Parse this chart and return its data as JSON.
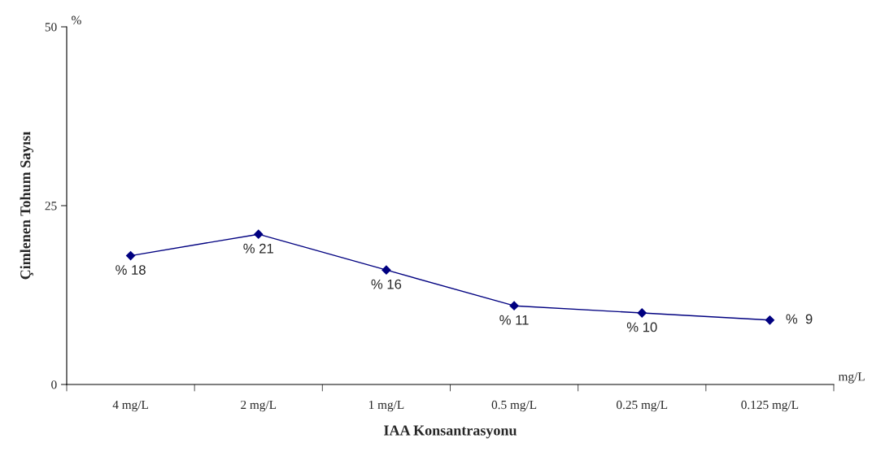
{
  "chart_data": {
    "type": "line",
    "xlabel": "IAA Konsantrasyonu",
    "ylabel": "Çimlenen Tohum Sayısı",
    "categories": [
      "4 mg/L",
      "2 mg/L",
      "1 mg/L",
      "0.5 mg/L",
      "0.25 mg/L",
      "0.125 mg/L"
    ],
    "series": [
      {
        "color": "#000080",
        "values": [
          18,
          21,
          16,
          11,
          10,
          9
        ],
        "value_labels": [
          "% 18",
          "% 21",
          "% 16",
          "% 11",
          "% 10",
          "%  9"
        ]
      }
    ],
    "ylim": [
      0,
      50
    ],
    "yticks": [
      0,
      25,
      50
    ],
    "marker": "diamond",
    "line_style": "solid",
    "grid": false,
    "legend": false,
    "annotations": [
      "%",
      "mg/L"
    ]
  }
}
